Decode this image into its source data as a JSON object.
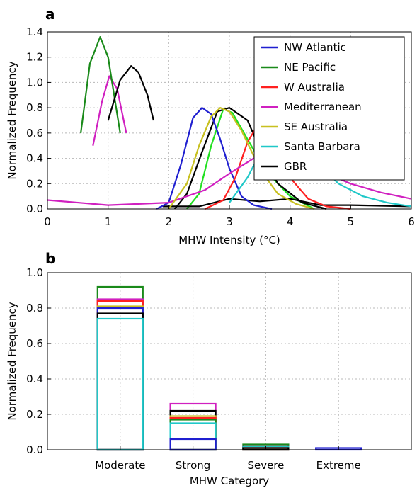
{
  "chart_data": [
    {
      "type": "line",
      "panel_label": "a",
      "xlabel": "MHW Intensity (°C)",
      "ylabel": "Normalized Frequency",
      "xlim": [
        0,
        6
      ],
      "ylim": [
        0,
        1.4
      ],
      "x_ticks": [
        "0",
        "1",
        "2",
        "3",
        "4",
        "5",
        "6"
      ],
      "y_ticks": [
        "0.0",
        "0.2",
        "0.4",
        "0.6",
        "0.8",
        "1.0",
        "1.2",
        "1.4"
      ],
      "grid": true,
      "legend_position": "top-right",
      "series": [
        {
          "name": "NW Atlantic",
          "color": "#1f1fd0",
          "points": [
            [
              1.8,
              0
            ],
            [
              2.0,
              0.05
            ],
            [
              2.2,
              0.35
            ],
            [
              2.4,
              0.72
            ],
            [
              2.55,
              0.8
            ],
            [
              2.7,
              0.75
            ],
            [
              2.85,
              0.55
            ],
            [
              3.0,
              0.32
            ],
            [
              3.2,
              0.1
            ],
            [
              3.4,
              0.03
            ],
            [
              3.7,
              0
            ]
          ]
        },
        {
          "name": "NE Pacific",
          "color": "#1a8a1a",
          "points": [
            [
              0.55,
              0.6
            ],
            [
              0.7,
              1.15
            ],
            [
              0.87,
              1.36
            ],
            [
              1.0,
              1.2
            ],
            [
              1.1,
              0.9
            ],
            [
              1.2,
              0.6
            ]
          ]
        },
        {
          "name": "W Australia",
          "color": "#ff2020",
          "points": [
            [
              2.6,
              0
            ],
            [
              2.9,
              0.07
            ],
            [
              3.1,
              0.25
            ],
            [
              3.3,
              0.53
            ],
            [
              3.5,
              0.69
            ],
            [
              3.65,
              0.65
            ],
            [
              3.85,
              0.45
            ],
            [
              4.05,
              0.22
            ],
            [
              4.3,
              0.08
            ],
            [
              4.6,
              0.02
            ],
            [
              5.0,
              0
            ]
          ]
        },
        {
          "name": "Mediterranean",
          "color": "#d020c0",
          "points": [
            [
              0,
              0.07
            ],
            [
              1.0,
              0.03
            ],
            [
              2.0,
              0.05
            ],
            [
              2.6,
              0.15
            ],
            [
              3.0,
              0.28
            ],
            [
              3.4,
              0.4
            ],
            [
              3.7,
              0.43
            ],
            [
              4.0,
              0.4
            ],
            [
              4.5,
              0.3
            ],
            [
              5.0,
              0.2
            ],
            [
              5.5,
              0.13
            ],
            [
              6.0,
              0.08
            ]
          ]
        },
        {
          "name": "SE Australia",
          "color": "#c8c020",
          "points": [
            [
              2.0,
              0
            ],
            [
              2.3,
              0.2
            ],
            [
              2.5,
              0.5
            ],
            [
              2.7,
              0.73
            ],
            [
              2.85,
              0.8
            ],
            [
              3.0,
              0.77
            ],
            [
              3.2,
              0.62
            ],
            [
              3.4,
              0.42
            ],
            [
              3.6,
              0.25
            ],
            [
              3.8,
              0.12
            ],
            [
              4.1,
              0.04
            ],
            [
              4.4,
              0
            ]
          ]
        },
        {
          "name": "Santa Barbara",
          "color": "#20c8c8",
          "points": [
            [
              3.0,
              0.05
            ],
            [
              3.3,
              0.25
            ],
            [
              3.55,
              0.48
            ],
            [
              3.7,
              0.58
            ],
            [
              3.85,
              0.63
            ],
            [
              4.0,
              0.6
            ],
            [
              4.2,
              0.5
            ],
            [
              4.5,
              0.34
            ],
            [
              4.8,
              0.2
            ],
            [
              5.2,
              0.1
            ],
            [
              5.6,
              0.05
            ],
            [
              6.0,
              0.02
            ]
          ]
        },
        {
          "name": "GBR",
          "color": "#000000",
          "points": [
            [
              1.0,
              0.7
            ],
            [
              1.2,
              1.02
            ],
            [
              1.38,
              1.13
            ],
            [
              1.5,
              1.08
            ],
            [
              1.65,
              0.9
            ],
            [
              1.75,
              0.7
            ]
          ]
        }
      ],
      "extra_curves": [
        {
          "color": "#20e020",
          "points": [
            [
              2.3,
              0
            ],
            [
              2.5,
              0.12
            ],
            [
              2.7,
              0.5
            ],
            [
              2.9,
              0.79
            ],
            [
              3.05,
              0.76
            ],
            [
              3.3,
              0.55
            ],
            [
              3.6,
              0.3
            ],
            [
              4.0,
              0.1
            ],
            [
              4.4,
              0
            ]
          ]
        },
        {
          "color": "#d020c0",
          "points": [
            [
              0.75,
              0.5
            ],
            [
              0.9,
              0.85
            ],
            [
              1.02,
              1.05
            ],
            [
              1.15,
              0.95
            ],
            [
              1.3,
              0.6
            ]
          ]
        },
        {
          "color": "#000000",
          "points": [
            [
              2.1,
              0
            ],
            [
              2.3,
              0.12
            ],
            [
              2.55,
              0.45
            ],
            [
              2.8,
              0.77
            ],
            [
              3.0,
              0.8
            ],
            [
              3.3,
              0.7
            ],
            [
              3.55,
              0.42
            ],
            [
              3.8,
              0.2
            ],
            [
              4.2,
              0.05
            ],
            [
              4.6,
              0
            ]
          ]
        },
        {
          "color": "#000000",
          "points": [
            [
              1.9,
              0.02
            ],
            [
              2.5,
              0.02
            ],
            [
              3.0,
              0.08
            ],
            [
              3.5,
              0.06
            ],
            [
              4.0,
              0.08
            ],
            [
              4.5,
              0.03
            ],
            [
              5.0,
              0.03
            ],
            [
              6.0,
              0.02
            ]
          ]
        }
      ]
    },
    {
      "type": "bar",
      "panel_label": "b",
      "xlabel": "MHW Category",
      "ylabel": "Normalized Frequency",
      "categories": [
        "Moderate",
        "Strong",
        "Severe",
        "Extreme"
      ],
      "ylim": [
        0,
        1.0
      ],
      "y_ticks": [
        "0.0",
        "0.2",
        "0.4",
        "0.6",
        "0.8",
        "1.0"
      ],
      "grid": true,
      "series": [
        {
          "name": "NW Atlantic",
          "color": "#1f1fd0",
          "values": [
            0.8,
            0.06,
            0.02,
            0.01
          ]
        },
        {
          "name": "NE Pacific",
          "color": "#1a8a1a",
          "values": [
            0.92,
            0.17,
            0.03,
            0.0
          ]
        },
        {
          "name": "W Australia",
          "color": "#ff2020",
          "values": [
            0.84,
            0.18,
            0.02,
            0.0
          ]
        },
        {
          "name": "Mediterranean",
          "color": "#d020c0",
          "values": [
            0.85,
            0.26,
            0.02,
            0.0
          ]
        },
        {
          "name": "SE Australia",
          "color": "#c8c020",
          "values": [
            0.81,
            0.19,
            0.01,
            0.0
          ]
        },
        {
          "name": "Santa Barbara",
          "color": "#20c8c8",
          "values": [
            0.74,
            0.15,
            0.02,
            0.0
          ]
        },
        {
          "name": "GBR",
          "color": "#000000",
          "values": [
            0.77,
            0.22,
            0.01,
            0.0
          ]
        }
      ]
    }
  ]
}
